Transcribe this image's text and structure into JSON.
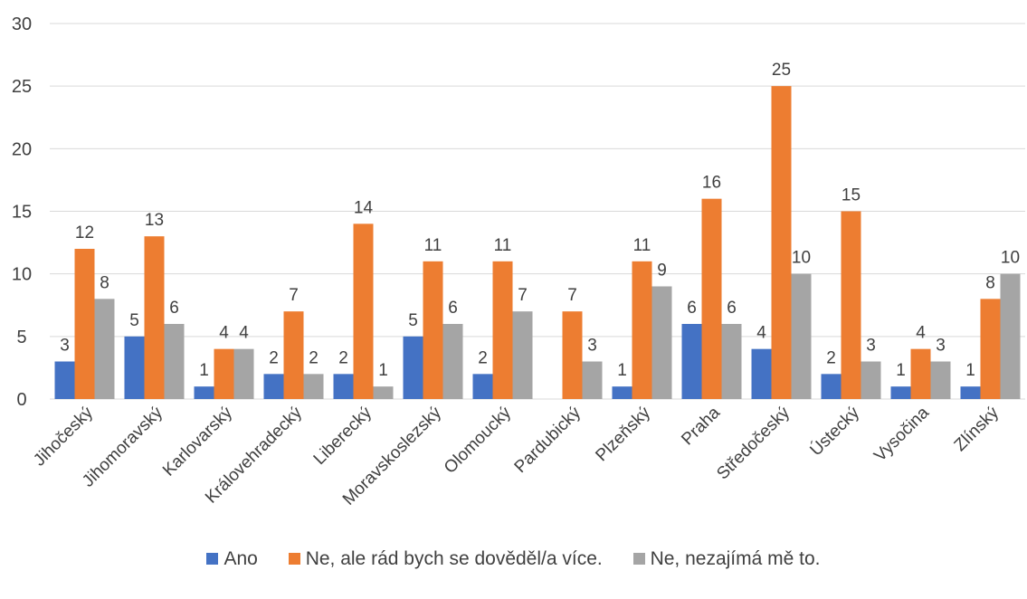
{
  "chart_data": {
    "type": "bar",
    "title": "",
    "xlabel": "",
    "ylabel": "",
    "ylim": [
      0,
      30
    ],
    "yticks": [
      0,
      5,
      10,
      15,
      20,
      25,
      30
    ],
    "grid": true,
    "legend_position": "bottom",
    "categories": [
      "Jihočeský",
      "Jihomoravský",
      "Karlovarský",
      "Královehradecký",
      "Liberecký",
      "Moravskoslezský",
      "Olomoucký",
      "Pardubický",
      "Plzeňský",
      "Praha",
      "Středočeský",
      "Ústecký",
      "Vysočina",
      "Zlínský"
    ],
    "series": [
      {
        "name": "Ano",
        "color": "#4472C4",
        "values": [
          3,
          5,
          1,
          2,
          2,
          5,
          2,
          null,
          1,
          6,
          4,
          2,
          1,
          1
        ]
      },
      {
        "name": "Ne, ale rád bych se dověděl/a více.",
        "color": "#ED7D31",
        "values": [
          12,
          13,
          4,
          7,
          14,
          11,
          11,
          7,
          11,
          16,
          25,
          15,
          4,
          8
        ]
      },
      {
        "name": "Ne, nezajímá mě to.",
        "color": "#A5A5A5",
        "values": [
          8,
          6,
          4,
          2,
          1,
          6,
          7,
          3,
          9,
          6,
          10,
          3,
          3,
          10
        ]
      }
    ]
  }
}
